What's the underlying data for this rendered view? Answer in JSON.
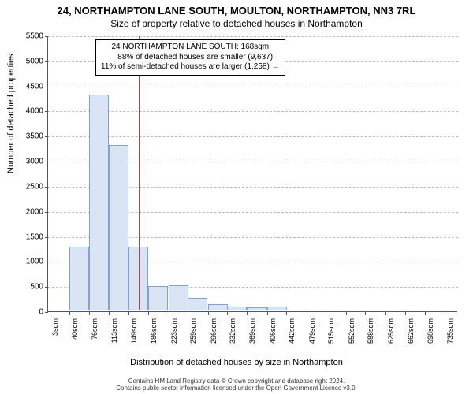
{
  "title_line1": "24, NORTHAMPTON LANE SOUTH, MOULTON, NORTHAMPTON, NN3 7RL",
  "title_line2": "Size of property relative to detached houses in Northampton",
  "ylabel": "Number of detached properties",
  "xlabel": "Distribution of detached houses by size in Northampton",
  "footer_line1": "Contains HM Land Registry data © Crown copyright and database right 2024.",
  "footer_line2": "Contains public sector information licensed under the Open Government Licence v3.0.",
  "chart": {
    "type": "histogram",
    "background_color": "#ffffff",
    "grid_color": "#bbbbbb",
    "axis_color": "#555555",
    "bar_fill": "#d9e4f5",
    "bar_border": "#7da3d9",
    "vline_color": "#d93636",
    "annotation_border": "#000000",
    "title_fontsize": 13,
    "subtitle_fontsize": 12,
    "label_fontsize": 11,
    "tick_fontsize": 10,
    "xtick_fontsize": 9,
    "ylim": [
      0,
      5500
    ],
    "ytick_step": 500,
    "yticks": [
      0,
      500,
      1000,
      1500,
      2000,
      2500,
      3000,
      3500,
      4000,
      4500,
      5000,
      5500
    ],
    "xlim": [
      0,
      760
    ],
    "xticks": [
      3,
      40,
      76,
      113,
      149,
      186,
      223,
      259,
      296,
      332,
      369,
      406,
      442,
      479,
      515,
      552,
      588,
      625,
      662,
      698,
      735
    ],
    "xtick_labels": [
      "3sqm",
      "40sqm",
      "76sqm",
      "113sqm",
      "149sqm",
      "186sqm",
      "223sqm",
      "259sqm",
      "296sqm",
      "332sqm",
      "369sqm",
      "406sqm",
      "442sqm",
      "479sqm",
      "515sqm",
      "552sqm",
      "588sqm",
      "625sqm",
      "662sqm",
      "698sqm",
      "735sqm"
    ],
    "bar_width_data": 36.6,
    "bars": [
      {
        "x": 3,
        "y": 0
      },
      {
        "x": 40,
        "y": 1270
      },
      {
        "x": 76,
        "y": 4300
      },
      {
        "x": 113,
        "y": 3300
      },
      {
        "x": 149,
        "y": 1280
      },
      {
        "x": 186,
        "y": 480
      },
      {
        "x": 223,
        "y": 510
      },
      {
        "x": 259,
        "y": 250
      },
      {
        "x": 296,
        "y": 120
      },
      {
        "x": 332,
        "y": 80
      },
      {
        "x": 369,
        "y": 60
      },
      {
        "x": 406,
        "y": 80
      },
      {
        "x": 442,
        "y": 0
      },
      {
        "x": 479,
        "y": 0
      },
      {
        "x": 515,
        "y": 0
      },
      {
        "x": 552,
        "y": 0
      },
      {
        "x": 588,
        "y": 0
      },
      {
        "x": 625,
        "y": 0
      },
      {
        "x": 662,
        "y": 0
      },
      {
        "x": 698,
        "y": 0
      }
    ],
    "vline_x": 168,
    "annotation": {
      "line1": "24 NORTHAMPTON LANE SOUTH: 168sqm",
      "line2": "← 88% of detached houses are smaller (9,637)",
      "line3": "11% of semi-detached houses are larger (1,258) →"
    }
  }
}
